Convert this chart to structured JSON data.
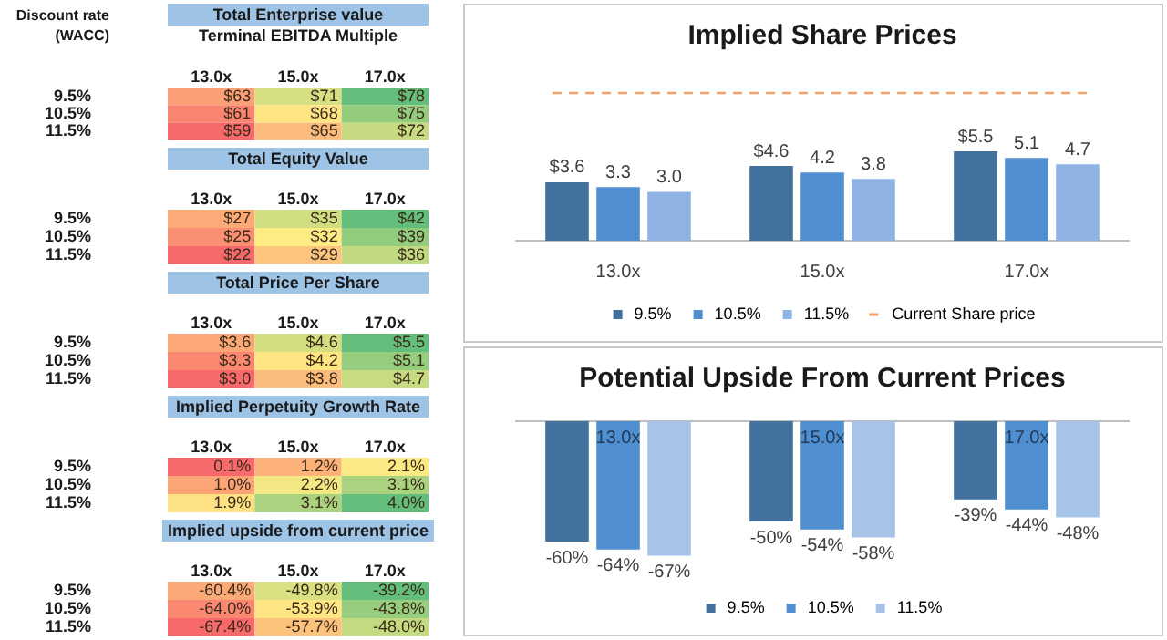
{
  "chart_data": [
    {
      "type": "heatmap",
      "title": "Total Enterprise value",
      "subtitle": "Terminal EBITDA Multiple",
      "ylabel": "Discount rate (WACC)",
      "categories": [
        "13.0x",
        "15.0x",
        "17.0x"
      ],
      "y_categories": [
        "9.5%",
        "10.5%",
        "11.5%"
      ],
      "cells": [
        [
          63,
          71,
          78
        ],
        [
          61,
          68,
          75
        ],
        [
          59,
          65,
          72
        ]
      ],
      "cell_labels": [
        [
          "$63",
          "$71",
          "$78"
        ],
        [
          "$61",
          "$68",
          "$75"
        ],
        [
          "$59",
          "$65",
          "$72"
        ]
      ]
    },
    {
      "type": "heatmap",
      "title": "Total Equity Value",
      "categories": [
        "13.0x",
        "15.0x",
        "17.0x"
      ],
      "y_categories": [
        "9.5%",
        "10.5%",
        "11.5%"
      ],
      "cells": [
        [
          27,
          35,
          42
        ],
        [
          25,
          32,
          39
        ],
        [
          22,
          29,
          36
        ]
      ],
      "cell_labels": [
        [
          "$27",
          "$35",
          "$42"
        ],
        [
          "$25",
          "$32",
          "$39"
        ],
        [
          "$22",
          "$29",
          "$36"
        ]
      ]
    },
    {
      "type": "heatmap",
      "title": "Total Price Per Share",
      "categories": [
        "13.0x",
        "15.0x",
        "17.0x"
      ],
      "y_categories": [
        "9.5%",
        "10.5%",
        "11.5%"
      ],
      "cells": [
        [
          3.6,
          4.6,
          5.5
        ],
        [
          3.3,
          4.2,
          5.1
        ],
        [
          3.0,
          3.8,
          4.7
        ]
      ],
      "cell_labels": [
        [
          "$3.6",
          "$4.6",
          "$5.5"
        ],
        [
          "$3.3",
          "$4.2",
          "$5.1"
        ],
        [
          "$3.0",
          "$3.8",
          "$4.7"
        ]
      ]
    },
    {
      "type": "heatmap",
      "title": "Implied Perpetuity Growth Rate",
      "categories": [
        "13.0x",
        "15.0x",
        "17.0x"
      ],
      "y_categories": [
        "9.5%",
        "10.5%",
        "11.5%"
      ],
      "cells": [
        [
          0.1,
          1.2,
          2.1
        ],
        [
          1.0,
          2.2,
          3.1
        ],
        [
          1.9,
          3.1,
          4.0
        ]
      ],
      "cell_labels": [
        [
          "0.1%",
          "1.2%",
          "2.1%"
        ],
        [
          "1.0%",
          "2.2%",
          "3.1%"
        ],
        [
          "1.9%",
          "3.1%",
          "4.0%"
        ]
      ]
    },
    {
      "type": "heatmap",
      "title": "Implied upside from current price",
      "categories": [
        "13.0x",
        "15.0x",
        "17.0x"
      ],
      "y_categories": [
        "9.5%",
        "10.5%",
        "11.5%"
      ],
      "cells": [
        [
          -60.4,
          -49.8,
          -39.2
        ],
        [
          -64.0,
          -53.9,
          -43.8
        ],
        [
          -67.4,
          -57.7,
          -48.0
        ]
      ],
      "cell_labels": [
        [
          "-60.4%",
          "-49.8%",
          "-39.2%"
        ],
        [
          "-64.0%",
          "-53.9%",
          "-43.8%"
        ],
        [
          "-67.4%",
          "-57.7%",
          "-48.0%"
        ]
      ]
    },
    {
      "type": "bar",
      "title": "Implied Share Prices",
      "categories": [
        "13.0x",
        "15.0x",
        "17.0x"
      ],
      "tick_labels": "x",
      "legend": "bottom",
      "series": [
        {
          "name": "9.5%",
          "color": "#41719c",
          "values": [
            3.6,
            4.6,
            5.5
          ],
          "value_labels": [
            "$3.6",
            "$4.6",
            "$5.5"
          ]
        },
        {
          "name": "10.5%",
          "color": "#4f8fd0",
          "values": [
            3.3,
            4.2,
            5.1
          ],
          "value_labels": [
            "3.3",
            "4.2",
            "5.1"
          ]
        },
        {
          "name": "11.5%",
          "color": "#8fb4e3",
          "values": [
            3.0,
            3.8,
            4.7
          ],
          "value_labels": [
            "3.0",
            "3.8",
            "4.7"
          ]
        }
      ],
      "ref_lines": [
        {
          "axis": "y",
          "value": 9.1,
          "label": "Current Share price",
          "color": "#f4a26b",
          "line_style": "dashed"
        }
      ]
    },
    {
      "type": "bar",
      "title": "Potential Upside From Current Prices",
      "categories": [
        "13.0x",
        "15.0x",
        "17.0x"
      ],
      "tick_labels": false,
      "legend": "bottom",
      "series": [
        {
          "name": "9.5%",
          "color": "#41719c",
          "values": [
            -60,
            -50,
            -39
          ],
          "value_labels": [
            "-60%",
            "-50%",
            "-39%"
          ]
        },
        {
          "name": "10.5%",
          "color": "#4f8fd0",
          "values": [
            -64,
            -54,
            -44
          ],
          "value_labels": [
            "-64%",
            "-54%",
            "-44%"
          ]
        },
        {
          "name": "11.5%",
          "color": "#a8c3e8",
          "values": [
            -67,
            -58,
            -48
          ],
          "value_labels": [
            "-67%",
            "-58%",
            "-48%"
          ]
        }
      ]
    }
  ]
}
